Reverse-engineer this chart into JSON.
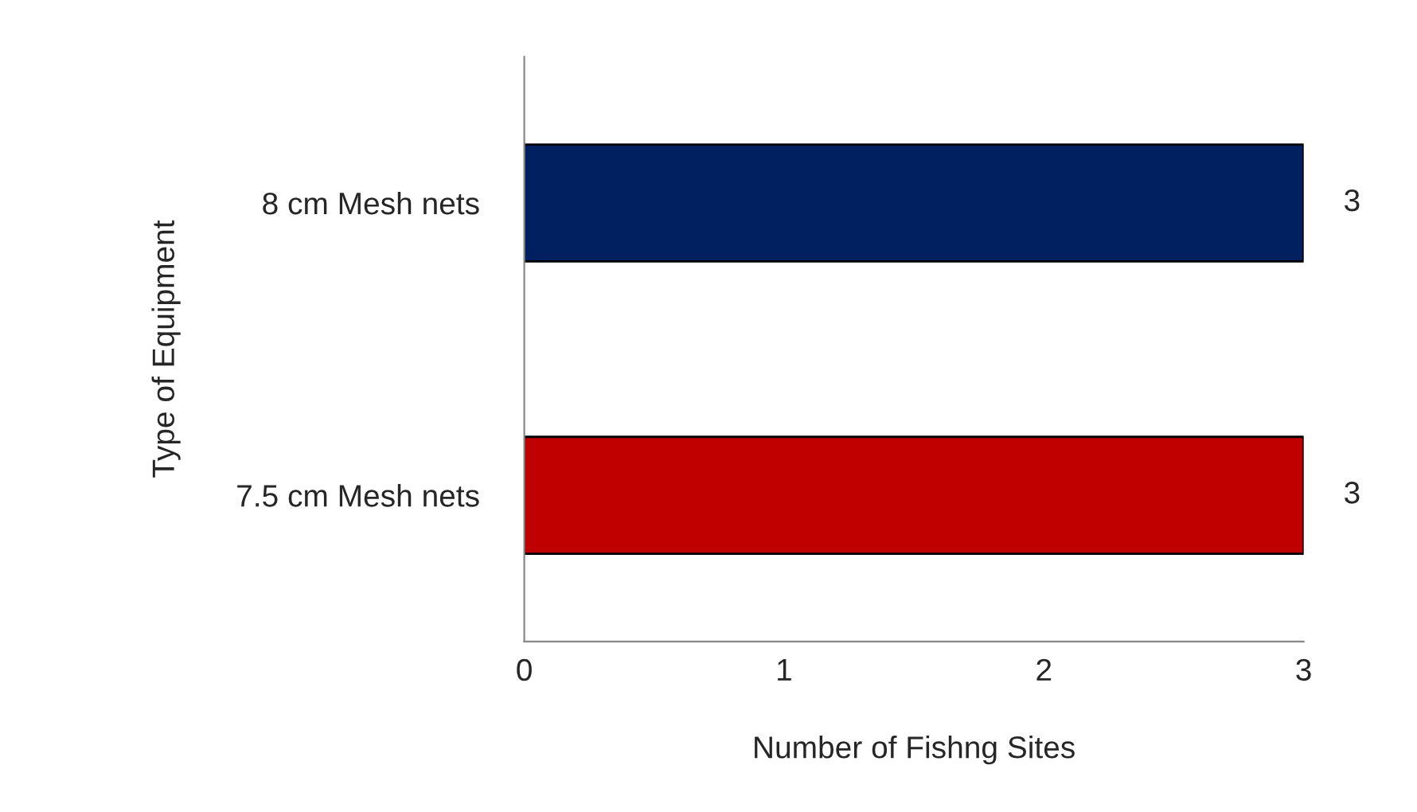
{
  "chart_data": {
    "type": "bar",
    "orientation": "horizontal",
    "xlabel": "Number of Fishng Sites",
    "ylabel": "Type of Equipment",
    "categories": [
      "8 cm Mesh nets",
      "7.5 cm Mesh nets"
    ],
    "values": [
      3,
      3
    ],
    "colors": [
      "#002060",
      "#c00000"
    ],
    "xlim": [
      0,
      3
    ],
    "xticks": [
      0,
      1,
      2,
      3
    ],
    "grid": false,
    "data_labels": true
  }
}
